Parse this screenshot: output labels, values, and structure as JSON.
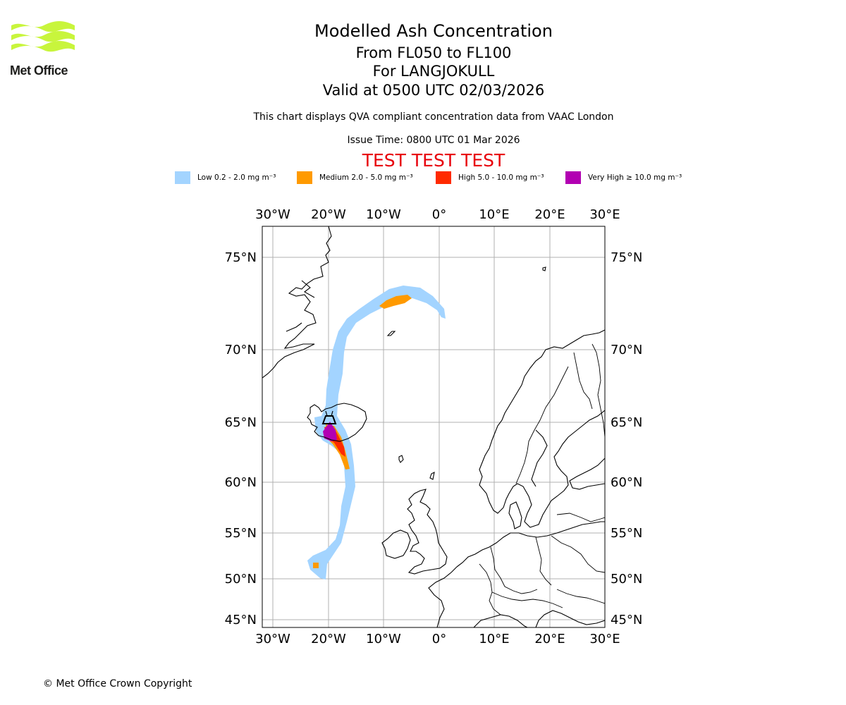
{
  "logo": {
    "name": "Met Office",
    "color": "#c8f53c"
  },
  "header": {
    "title": "Modelled Ash Concentration",
    "levels": "From FL050 to FL100",
    "volcano": "For LANGJOKULL",
    "valid": "Valid at 0500 UTC 02/03/2026",
    "compliance": "This chart displays QVA compliant concentration data from VAAC London",
    "issue_time": "Issue Time: 0800 UTC 01 Mar 2026",
    "test_banner": "TEST TEST TEST"
  },
  "legend": [
    {
      "label": "Low 0.2 - 2.0 mg m⁻³",
      "color": "#a3d4ff"
    },
    {
      "label": "Medium 2.0 - 5.0 mg m⁻³",
      "color": "#ff9a00"
    },
    {
      "label": "High 5.0 - 10.0 mg m⁻³",
      "color": "#ff2a00"
    },
    {
      "label": "Very High  ≥  10.0 mg m⁻³",
      "color": "#b200b2"
    }
  ],
  "map": {
    "lon_labels": [
      "30°W",
      "20°W",
      "10°W",
      "0°",
      "10°E",
      "20°E",
      "30°E"
    ],
    "lat_labels": [
      "75°N",
      "70°N",
      "65°N",
      "60°N",
      "55°N",
      "50°N",
      "45°N"
    ],
    "lon_values": [
      -30,
      -20,
      -10,
      0,
      10,
      20,
      30
    ],
    "lat_values": [
      75,
      70,
      65,
      60,
      55,
      50,
      45
    ],
    "grid_color": "#b0b0b0"
  },
  "footer": {
    "copyright": "© Met Office Crown Copyright"
  }
}
